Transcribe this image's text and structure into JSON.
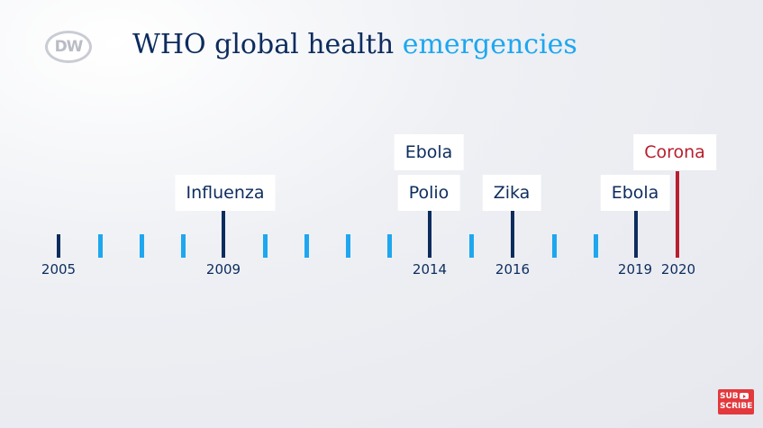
{
  "header": {
    "logo_text": "DW",
    "title_main": "WHO global health",
    "title_highlight": "emergencies"
  },
  "timeline": {
    "years": [
      "2005",
      "2009",
      "2014",
      "2016",
      "2019",
      "2020"
    ],
    "events": [
      {
        "year": "2009",
        "label": "Influenza"
      },
      {
        "year": "2014",
        "label": "Polio"
      },
      {
        "year": "2014",
        "label": "Ebola"
      },
      {
        "year": "2016",
        "label": "Zika"
      },
      {
        "year": "2019",
        "label": "Ebola"
      },
      {
        "year": "2020",
        "label": "Corona"
      }
    ]
  },
  "subscribe": {
    "line1": "SUB",
    "line2": "SCRIBE"
  },
  "colors": {
    "navy": "#0d2c5e",
    "accent_blue": "#1ea7ef",
    "highlight_red": "#b81e2e"
  }
}
